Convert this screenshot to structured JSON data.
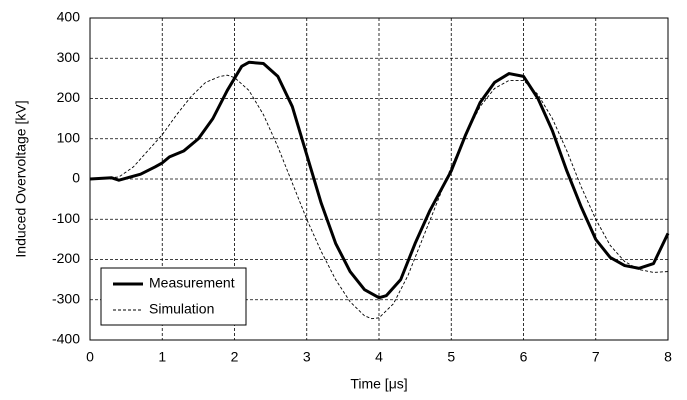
{
  "chart_data": {
    "type": "line",
    "x_label": "Time  [μs]",
    "y_label": "Induced  Overvoltage  [kV]",
    "xlim": [
      0,
      8
    ],
    "xticks": [
      0,
      1,
      2,
      3,
      4,
      5,
      6,
      7,
      8
    ],
    "ylim": [
      -400,
      400
    ],
    "yticks": [
      -400,
      -300,
      -200,
      -100,
      0,
      100,
      200,
      300,
      400
    ],
    "grid": true,
    "legend": "lower-left",
    "series": [
      {
        "name": "Measurement",
        "color": "#000000",
        "style": "solid",
        "x": [
          0,
          0.3,
          0.4,
          0.5,
          0.7,
          0.9,
          1.0,
          1.1,
          1.3,
          1.5,
          1.7,
          1.9,
          2.1,
          2.2,
          2.4,
          2.6,
          2.8,
          3.0,
          3.2,
          3.4,
          3.6,
          3.8,
          4.0,
          4.1,
          4.3,
          4.5,
          4.7,
          5.0,
          5.2,
          5.4,
          5.6,
          5.8,
          6.0,
          6.2,
          6.4,
          6.6,
          6.8,
          7.0,
          7.2,
          7.4,
          7.6,
          7.8,
          8.0
        ],
        "values": [
          0,
          3,
          -3,
          2,
          12,
          30,
          40,
          55,
          70,
          100,
          150,
          220,
          280,
          290,
          287,
          255,
          180,
          60,
          -60,
          -160,
          -230,
          -275,
          -295,
          -290,
          -250,
          -160,
          -80,
          20,
          110,
          190,
          240,
          262,
          255,
          200,
          120,
          20,
          -70,
          -150,
          -195,
          -215,
          -222,
          -210,
          -135
        ]
      },
      {
        "name": "Simulation",
        "color": "#000000",
        "style": "dashed",
        "x": [
          0,
          0.4,
          0.6,
          0.8,
          1.0,
          1.2,
          1.4,
          1.6,
          1.8,
          1.9,
          2.0,
          2.2,
          2.4,
          2.6,
          2.8,
          3.0,
          3.2,
          3.4,
          3.6,
          3.8,
          3.9,
          4.0,
          4.2,
          4.4,
          4.6,
          4.8,
          5.0,
          5.2,
          5.4,
          5.6,
          5.8,
          6.0,
          6.2,
          6.4,
          6.6,
          6.8,
          7.0,
          7.2,
          7.4,
          7.6,
          7.8,
          8.0
        ],
        "values": [
          0,
          5,
          30,
          70,
          110,
          160,
          205,
          240,
          255,
          258,
          252,
          220,
          160,
          80,
          -10,
          -100,
          -180,
          -250,
          -305,
          -340,
          -347,
          -345,
          -310,
          -240,
          -150,
          -60,
          30,
          110,
          180,
          225,
          245,
          245,
          210,
          150,
          70,
          -20,
          -100,
          -165,
          -205,
          -225,
          -232,
          -230
        ]
      }
    ]
  }
}
